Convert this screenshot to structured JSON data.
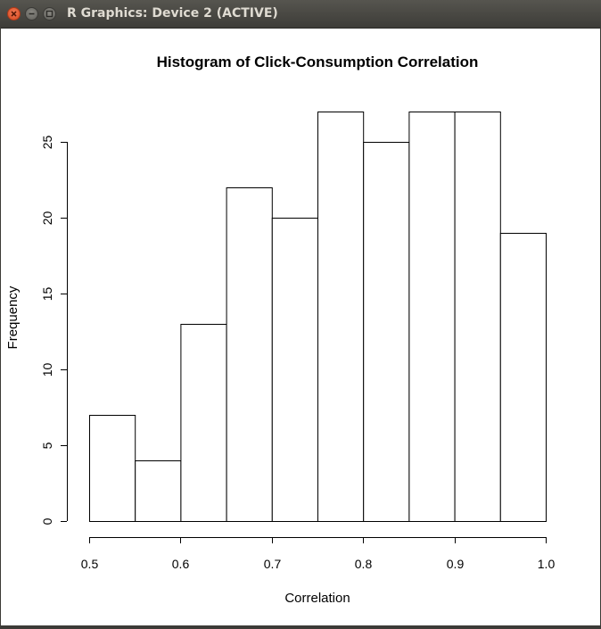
{
  "window": {
    "title": "R Graphics: Device 2 (ACTIVE)",
    "buttons": [
      "close",
      "minimize",
      "maximize"
    ]
  },
  "chart_data": {
    "type": "histogram",
    "title": "Histogram of Click-Consumption Correlation",
    "xlabel": "Correlation",
    "ylabel": "Frequency",
    "bin_edges": [
      0.5,
      0.55,
      0.6,
      0.65,
      0.7,
      0.75,
      0.8,
      0.85,
      0.9,
      0.95,
      1.0
    ],
    "values": [
      7,
      4,
      13,
      22,
      20,
      27,
      25,
      27,
      27,
      19
    ],
    "xlim": [
      0.5,
      1.0
    ],
    "ylim": [
      0,
      25
    ],
    "x_ticks": [
      "0.5",
      "0.6",
      "0.7",
      "0.8",
      "0.9",
      "1.0"
    ],
    "y_ticks": [
      "0",
      "5",
      "10",
      "15",
      "20",
      "25"
    ],
    "grid": false,
    "bar_fill": "#ffffff",
    "bar_stroke": "#000000"
  }
}
